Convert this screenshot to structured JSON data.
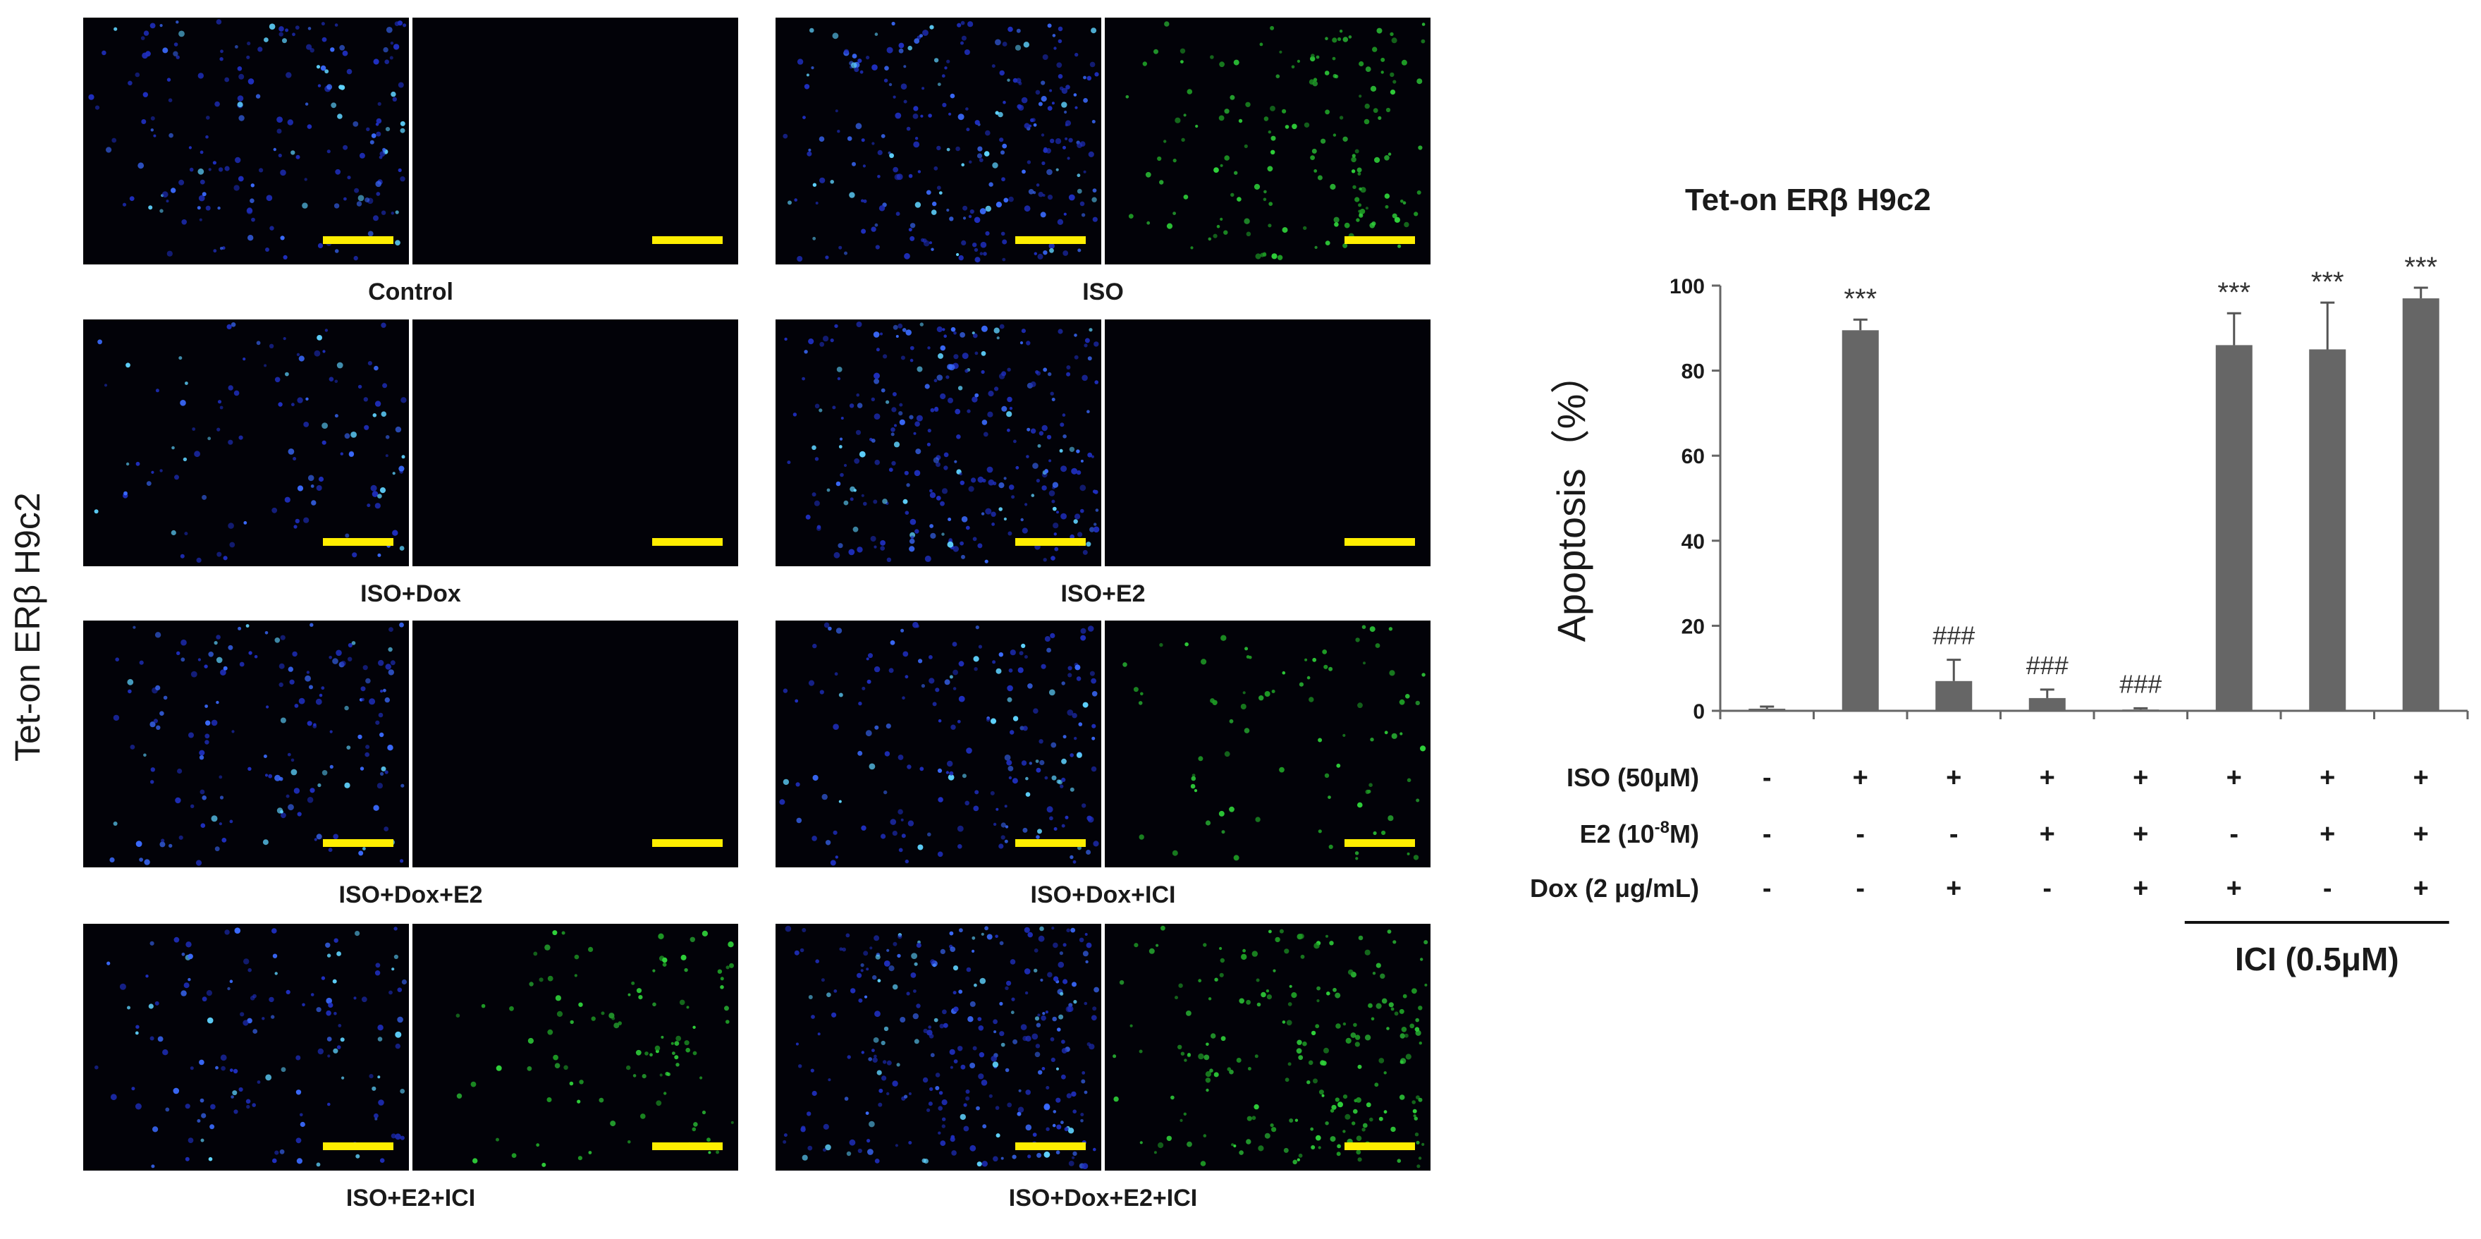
{
  "figure": {
    "side_label": "Tet-on ERβ H9c2"
  },
  "panels": [
    {
      "caption": "Control",
      "green_density": 0,
      "blue_density": 0.5
    },
    {
      "caption": "ISO",
      "green_density": 0.7,
      "blue_density": 0.8
    },
    {
      "caption": "ISO+Dox",
      "green_density": 0,
      "blue_density": 0.2
    },
    {
      "caption": "ISO+E2",
      "green_density": 0,
      "blue_density": 0.9
    },
    {
      "caption": "ISO+Dox+E2",
      "green_density": 0,
      "blue_density": 0.4
    },
    {
      "caption": "ISO+Dox+ICI",
      "green_density": 0.35,
      "blue_density": 0.5
    },
    {
      "caption": "ISO+E2+ICI",
      "green_density": 0.45,
      "blue_density": 0.3
    },
    {
      "caption": "ISO+Dox+E2+ICI",
      "green_density": 0.9,
      "blue_density": 0.9
    }
  ],
  "chart_data": {
    "type": "bar",
    "title": "Tet-on ERβ H9c2",
    "ylabel": "Apoptosis（%）",
    "ylim": [
      0,
      100
    ],
    "yticks": [
      "0",
      "20",
      "40",
      "60",
      "80",
      "100"
    ],
    "grid": false,
    "bar_color": "#666666",
    "values": [
      0.5,
      89.5,
      7,
      3,
      0.3,
      86,
      85,
      97
    ],
    "errors": [
      0.5,
      2.5,
      5,
      2,
      0.3,
      7.5,
      11,
      2.5
    ],
    "significance": [
      "",
      "***",
      "###",
      "###",
      "###",
      "***",
      "***",
      "***"
    ],
    "conditions": [
      {
        "label": "ISO (50μM)",
        "signs": [
          "-",
          "+",
          "+",
          "+",
          "+",
          "+",
          "+",
          "+"
        ]
      },
      {
        "label": "E2 (10-8M)",
        "label_main": "E2 (10",
        "label_sup": "-8",
        "label_tail": "M)",
        "signs": [
          "-",
          "-",
          "-",
          "+",
          "+",
          "-",
          "+",
          "+"
        ]
      },
      {
        "label": "Dox (2 μg/mL)",
        "signs": [
          "-",
          "-",
          "+",
          "-",
          "+",
          "+",
          "-",
          "+"
        ]
      }
    ],
    "bracket_label": "ICI (0.5μM)"
  }
}
